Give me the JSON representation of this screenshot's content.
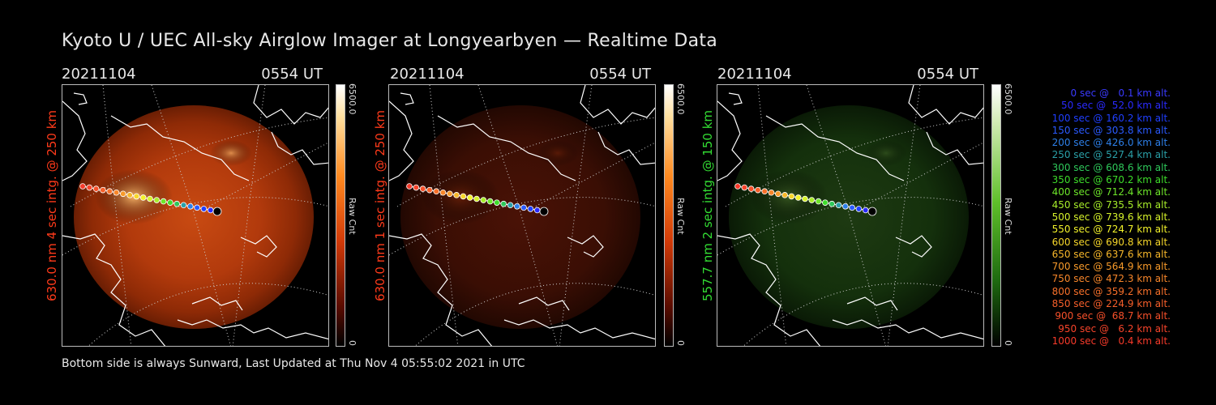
{
  "title": "Kyoto U / UEC All-sky Airglow Imager at Longyearbyen — Realtime Data",
  "footer": "Bottom side is always Sunward, Last Updated at Thu Nov  4 05:55:02 2021 in UTC",
  "panels": [
    {
      "date": "20211104",
      "time": "0554 UT",
      "label": "630.0 nm 4 sec intg. @ 250 km",
      "label_color": "#ff3a1a",
      "cbar_max": "6500.0",
      "cbar_unit": "Raw Cnt",
      "cbar_min": "0",
      "scheme": "red",
      "brightness": 1.0
    },
    {
      "date": "20211104",
      "time": "0554 UT",
      "label": "630.0 nm 1 sec intg. @ 250 km",
      "label_color": "#ff3a1a",
      "cbar_max": "6500.0",
      "cbar_unit": "Raw Cnt",
      "cbar_min": "0",
      "scheme": "red",
      "brightness": 0.25
    },
    {
      "date": "20211104",
      "time": "0554 UT",
      "label": "557.7 nm 2 sec intg. @ 150 km",
      "label_color": "#33dd33",
      "cbar_max": "6500.0",
      "cbar_unit": "Raw Cnt",
      "cbar_min": "0",
      "scheme": "green",
      "brightness": 0.2
    }
  ],
  "legend": [
    {
      "text": "0 sec @   0.1 km alt.",
      "color": "#3a3aff"
    },
    {
      "text": "50 sec @  52.0 km alt.",
      "color": "#2a2aff"
    },
    {
      "text": "100 sec @ 160.2 km alt.",
      "color": "#1f3fff"
    },
    {
      "text": "150 sec @ 303.8 km alt.",
      "color": "#2a5aff"
    },
    {
      "text": "200 sec @ 426.0 km alt.",
      "color": "#2d7fe8"
    },
    {
      "text": "250 sec @ 527.4 km alt.",
      "color": "#2aa0a8"
    },
    {
      "text": "300 sec @ 608.6 km alt.",
      "color": "#2ec85a"
    },
    {
      "text": "350 sec @ 670.2 km alt.",
      "color": "#3ddc2a"
    },
    {
      "text": "400 sec @ 712.4 km alt.",
      "color": "#6ee62a"
    },
    {
      "text": "450 sec @ 735.5 km alt.",
      "color": "#a8ee2a"
    },
    {
      "text": "500 sec @ 739.6 km alt.",
      "color": "#d6f22a"
    },
    {
      "text": "550 sec @ 724.7 km alt.",
      "color": "#f2f22a"
    },
    {
      "text": "600 sec @ 690.8 km alt.",
      "color": "#f7d72a"
    },
    {
      "text": "650 sec @ 637.6 km alt.",
      "color": "#f7b72a"
    },
    {
      "text": "700 sec @ 564.9 km alt.",
      "color": "#f79a2a"
    },
    {
      "text": "750 sec @ 472.3 km alt.",
      "color": "#f7862a"
    },
    {
      "text": "800 sec @ 359.2 km alt.",
      "color": "#f7702a"
    },
    {
      "text": "850 sec @ 224.9 km alt.",
      "color": "#f75f2a"
    },
    {
      "text": "900 sec @  68.7 km alt.",
      "color": "#f7502a"
    },
    {
      "text": "950 sec @   6.2 km alt.",
      "color": "#f7442a"
    },
    {
      "text": "1000 sec @   0.4 km alt.",
      "color": "#f73a2a"
    }
  ]
}
